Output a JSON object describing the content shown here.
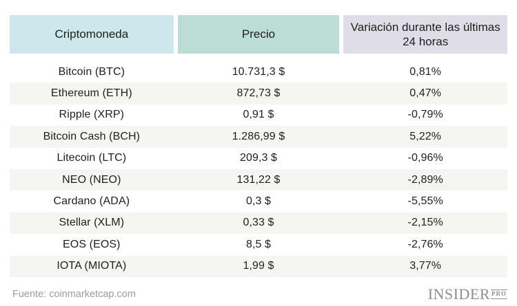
{
  "chart_data": {
    "type": "table",
    "columns": [
      "Criptomoneda",
      "Precio",
      "Variación durante las últimas 24 horas"
    ],
    "rows": [
      [
        "Bitcoin (BTC)",
        "10.731,3 $",
        "0,81%"
      ],
      [
        "Ethereum (ETH)",
        "872,73 $",
        "0,47%"
      ],
      [
        "Ripple (XRP)",
        "0,91 $",
        "-0,79%"
      ],
      [
        "Bitcoin Cash (BCH)",
        "1.286,99 $",
        "5,22%"
      ],
      [
        "Litecoin (LTC)",
        "209,3 $",
        "-0,96%"
      ],
      [
        "NEO (NEO)",
        "131,22 $",
        "-2,89%"
      ],
      [
        "Cardano (ADA)",
        "0,3 $",
        "-5,55%"
      ],
      [
        "Stellar (XLM)",
        "0,33 $",
        "-2,15%"
      ],
      [
        "EOS (EOS)",
        "8,5 $",
        "-2,76%"
      ],
      [
        "IOTA (MIOTA)",
        "1,99 $",
        "3,77%"
      ]
    ],
    "layout_hints": {
      "alternating_row_shading": true,
      "shaded_rows": [
        2,
        4,
        6,
        8,
        10
      ],
      "text_alignment": "center"
    }
  },
  "footer": {
    "source": "Fuente: coinmarketcap.com",
    "logo_main": "INSIDER",
    "logo_sub": "PRO"
  },
  "colors": {
    "header_col1_bg": "#cde7ea",
    "header_col2_bg": "#bcdcd6",
    "header_col3_bg": "#dfdde8",
    "alt_row_bg": "#f5f5f2",
    "text": "#1e1e1c",
    "muted_text": "#9c9c9c",
    "logo": "#8d8d8d"
  }
}
